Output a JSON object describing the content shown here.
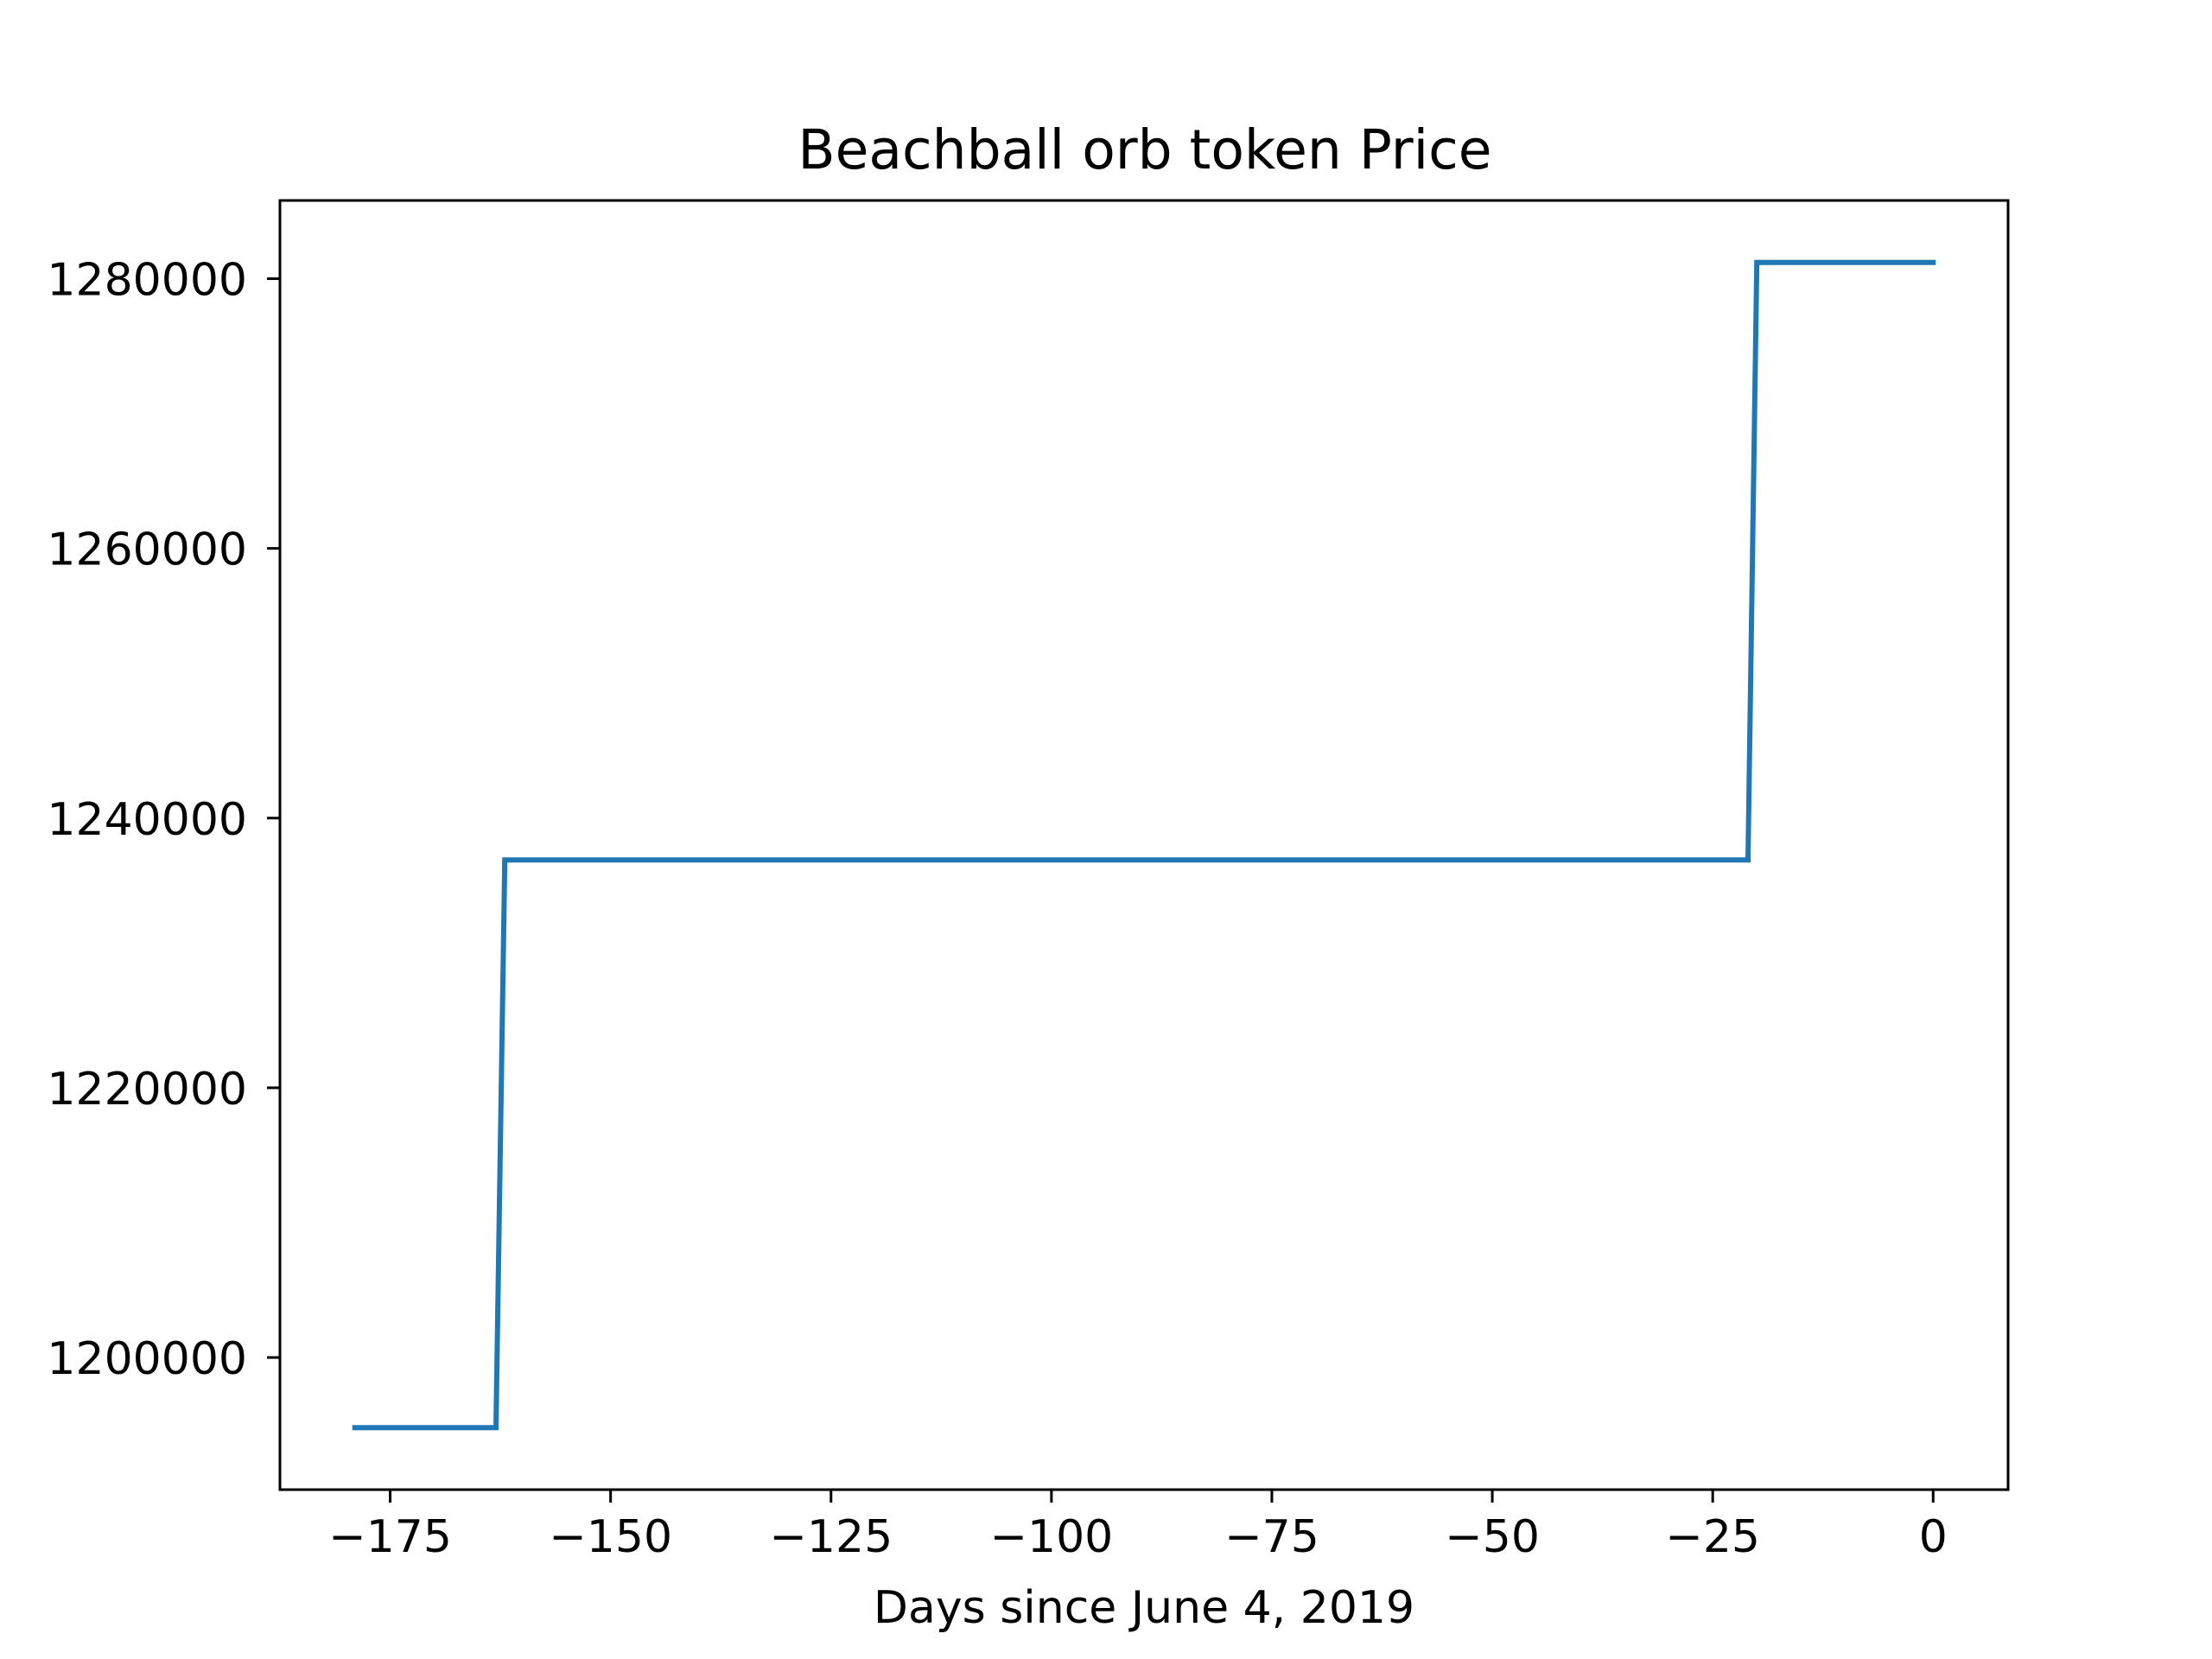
{
  "chart_data": {
    "type": "line",
    "title": "Beachball orb token Price",
    "xlabel": "Days since June 4, 2019",
    "ylabel": "",
    "xlim": [
      -187.5,
      8.5
    ],
    "ylim": [
      1190200,
      1285800
    ],
    "xticks": [
      -175,
      -150,
      -125,
      -100,
      -75,
      -50,
      -25,
      0
    ],
    "xtick_labels": [
      "−175",
      "−150",
      "−125",
      "−100",
      "−75",
      "−50",
      "−25",
      "0"
    ],
    "yticks": [
      1200000,
      1220000,
      1240000,
      1260000,
      1280000
    ],
    "ytick_labels": [
      "1200000",
      "1220000",
      "1240000",
      "1260000",
      "1280000"
    ],
    "grid": false,
    "series": [
      {
        "color": "#1f77b4",
        "x": [
          -179,
          -163,
          -162,
          -21,
          -20,
          0
        ],
        "y": [
          1194800,
          1194800,
          1236900,
          1236900,
          1281200,
          1281200
        ]
      }
    ]
  }
}
